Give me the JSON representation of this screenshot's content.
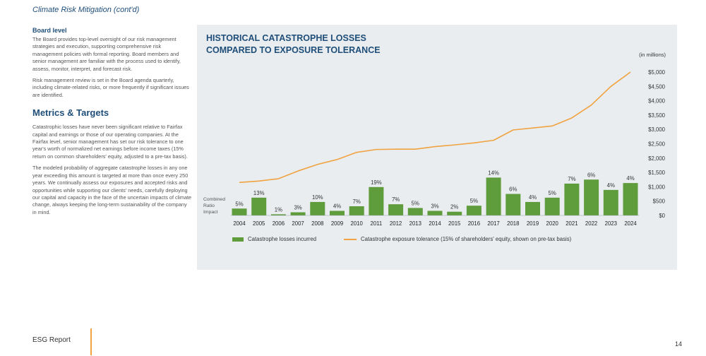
{
  "header": {
    "running_title": "Climate Risk Mitigation (cont'd)"
  },
  "left": {
    "board_heading": "Board level",
    "board_p1": "The Board provides top-level oversight of our risk management strategies and execution, supporting comprehensive risk management policies with formal reporting. Board members and senior management are familiar with the process used to identify, assess, monitor, interpret, and forecast risk.",
    "board_p2": "Risk management review is set in the Board agenda quarterly, including climate-related risks, or more frequently if significant issues are identified.",
    "metrics_heading": "Metrics & Targets",
    "metrics_p1": "Catastrophic losses have never been significant relative to Fairfax capital and earnings or those of our operating companies. At the Fairfax level, senior management has set our risk tolerance to one year's worth of normalized net earnings before income taxes (15% return on common shareholders' equity, adjusted to a pre-tax basis).",
    "metrics_p2": "The modeled probability of aggregate catastrophe losses in any one year exceeding this amount is targeted at more than once every 250 years. We continually assess our exposures and accepted risks and opportunities while supporting our clients' needs, carefully deploying our capital and capacity in the face of the uncertain impacts of climate change, always keeping the long-term sustainability of the company in mind."
  },
  "chart_data": {
    "type": "bar",
    "title_line1": "HISTORICAL CATASTROPHE LOSSES",
    "title_line2": "COMPARED TO EXPOSURE TOLERANCE",
    "units_note": "(in millions)",
    "row_label_lines": [
      "Combined",
      "Ratio",
      "Impact"
    ],
    "categories": [
      "2004",
      "2005",
      "2006",
      "2007",
      "2008",
      "2009",
      "2010",
      "2011",
      "2012",
      "2013",
      "2014",
      "2015",
      "2016",
      "2017",
      "2018",
      "2019",
      "2020",
      "2021",
      "2022",
      "2023",
      "2024"
    ],
    "series": [
      {
        "name": "Catastrophe losses incurred",
        "kind": "bar",
        "color": "#5e9c3c",
        "values": [
          240,
          620,
          40,
          110,
          470,
          160,
          320,
          990,
          390,
          260,
          160,
          130,
          340,
          1320,
          750,
          470,
          620,
          1110,
          1250,
          890,
          1130
        ],
        "labels": [
          "5%",
          "13%",
          "1%",
          "3%",
          "10%",
          "4%",
          "7%",
          "19%",
          "7%",
          "5%",
          "3%",
          "2%",
          "5%",
          "14%",
          "6%",
          "4%",
          "5%",
          "7%",
          "6%",
          "4%",
          "4%"
        ]
      },
      {
        "name": "Catastrophe exposure tolerance (15% of shareholders' equity, shown on pre-tax basis)",
        "kind": "line",
        "color": "#f0a340",
        "values": [
          1150,
          1200,
          1280,
          1550,
          1780,
          1950,
          2200,
          2300,
          2310,
          2310,
          2400,
          2460,
          2530,
          2620,
          2980,
          3050,
          3120,
          3400,
          3850,
          4500,
          5000
        ]
      }
    ],
    "y_ticks": [
      {
        "value": 0,
        "label": "$0"
      },
      {
        "value": 500,
        "label": "$500"
      },
      {
        "value": 1000,
        "label": "$1,000"
      },
      {
        "value": 1500,
        "label": "$1,500"
      },
      {
        "value": 2000,
        "label": "$2,000"
      },
      {
        "value": 2500,
        "label": "$2,500"
      },
      {
        "value": 3000,
        "label": "$3,000"
      },
      {
        "value": 3500,
        "label": "$3,500"
      },
      {
        "value": 4000,
        "label": "$4,000"
      },
      {
        "value": 4500,
        "label": "$4,500"
      },
      {
        "value": 5000,
        "label": "$5,000"
      }
    ],
    "ylim": [
      0,
      5000
    ],
    "grid": false,
    "y_axis_side": "right",
    "legend_position": "bottom"
  },
  "footer": {
    "label": "ESG Report",
    "page_number": "14"
  }
}
